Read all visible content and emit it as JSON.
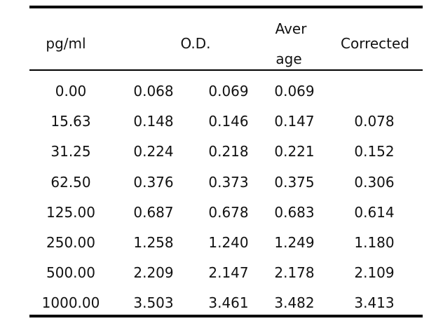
{
  "table": {
    "headers": {
      "concentration": "pg/ml",
      "od": "O.D.",
      "average_line1": "Aver",
      "average_line2": "age",
      "corrected": "Corrected"
    },
    "rows": [
      {
        "conc": "0.00",
        "od1": "0.068",
        "od2": "0.069",
        "avg": "0.069",
        "corrected": ""
      },
      {
        "conc": "15.63",
        "od1": "0.148",
        "od2": "0.146",
        "avg": "0.147",
        "corrected": "0.078"
      },
      {
        "conc": "31.25",
        "od1": "0.224",
        "od2": "0.218",
        "avg": "0.221",
        "corrected": "0.152"
      },
      {
        "conc": "62.50",
        "od1": "0.376",
        "od2": "0.373",
        "avg": "0.375",
        "corrected": "0.306"
      },
      {
        "conc": "125.00",
        "od1": "0.687",
        "od2": "0.678",
        "avg": "0.683",
        "corrected": "0.614"
      },
      {
        "conc": "250.00",
        "od1": "1.258",
        "od2": "1.240",
        "avg": "1.249",
        "corrected": "1.180"
      },
      {
        "conc": "500.00",
        "od1": "2.209",
        "od2": "2.147",
        "avg": "2.178",
        "corrected": "2.109"
      },
      {
        "conc": "1000.00",
        "od1": "3.503",
        "od2": "3.461",
        "avg": "3.482",
        "corrected": "3.413"
      }
    ]
  }
}
